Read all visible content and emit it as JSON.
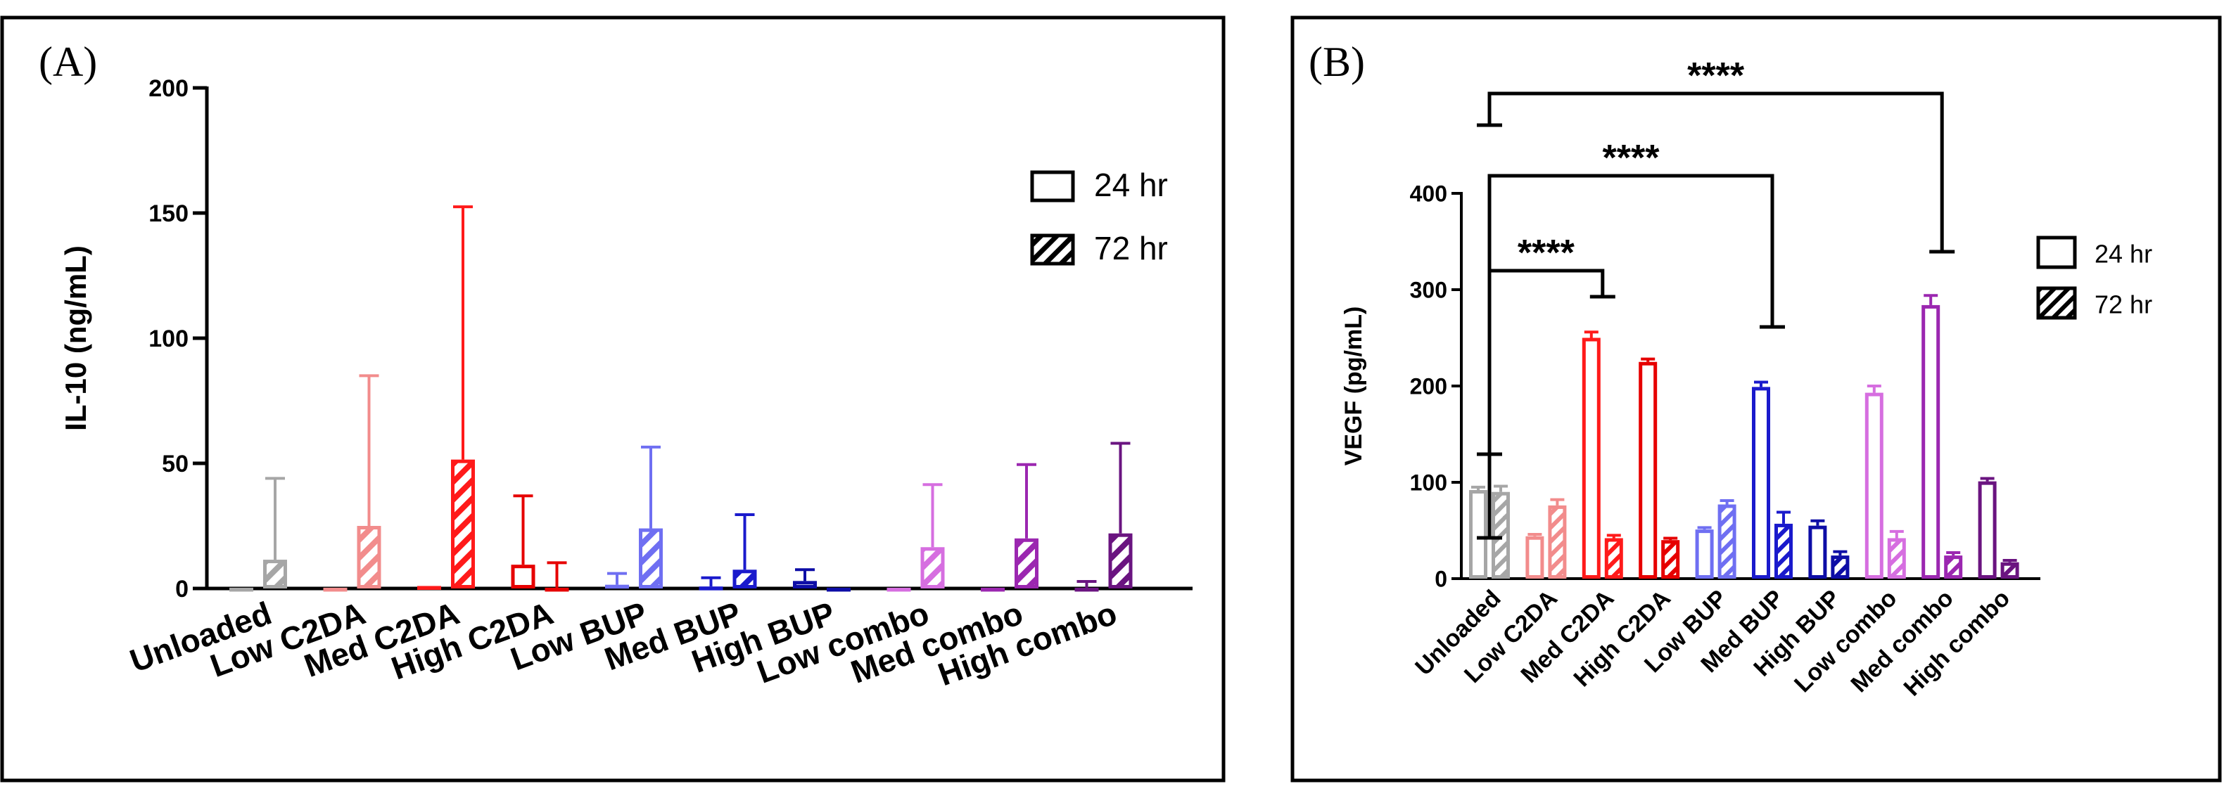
{
  "chart_data": [
    {
      "panel": "(A)",
      "type": "bar",
      "title": "",
      "xlabel": "",
      "ylabel": "IL-10 (ng/mL)",
      "ylim": [
        0,
        200
      ],
      "yticks": [
        "0",
        "50",
        "100",
        "150",
        "200"
      ],
      "categories": [
        "Unloaded",
        "Low C2DA",
        "Med C2DA",
        "High C2DA",
        "Low BUP",
        "Med BUP",
        "High BUP",
        "Low combo",
        "Med combo",
        "High combo"
      ],
      "colors": [
        "#a6a6a6",
        "#f28c8c",
        "#ff1a1a",
        "#e60000",
        "#6f6ff2",
        "#1a1acc",
        "#0d0da6",
        "#d66ee0",
        "#9b27b0",
        "#6a1480"
      ],
      "series": [
        {
          "name": "24 hr",
          "pattern": "open",
          "values": [
            0.3,
            0.3,
            1.0,
            9.5,
            1.5,
            0.8,
            3.0,
            0.3,
            0.3,
            0.3
          ],
          "errors": [
            0,
            0,
            0,
            27.5,
            4.5,
            3.5,
            4.5,
            0,
            0,
            2.5
          ]
        },
        {
          "name": "72 hr",
          "pattern": "hatched",
          "values": [
            11.5,
            25.0,
            51.5,
            0.3,
            24.0,
            7.5,
            0.3,
            16.5,
            20.0,
            22.0
          ],
          "errors": [
            32.5,
            60.0,
            101.0,
            10.0,
            32.5,
            22.0,
            0,
            25.0,
            29.5,
            36.0
          ]
        }
      ],
      "legend": {
        "placement": "top-right",
        "entries": [
          "24 hr",
          "72 hr"
        ]
      }
    },
    {
      "panel": "(B)",
      "type": "bar",
      "title": "",
      "xlabel": "",
      "ylabel": "VEGF (pg/mL)",
      "ylim": [
        0,
        400
      ],
      "yticks": [
        "0",
        "100",
        "200",
        "300",
        "400"
      ],
      "categories": [
        "Unloaded",
        "Low C2DA",
        "Med C2DA",
        "High C2DA",
        "Low BUP",
        "Med BUP",
        "High BUP",
        "Low combo",
        "Med combo",
        "High combo"
      ],
      "colors": [
        "#a6a6a6",
        "#f28c8c",
        "#ff1a1a",
        "#e60000",
        "#6f6ff2",
        "#1a1acc",
        "#0d0da6",
        "#d66ee0",
        "#9b27b0",
        "#6a1480"
      ],
      "series": [
        {
          "name": "24 hr",
          "pattern": "open",
          "values": [
            92,
            44,
            250,
            225,
            51,
            199,
            55,
            193,
            284,
            101
          ],
          "errors": [
            3,
            2,
            6,
            3,
            2,
            5,
            5,
            7,
            10,
            3
          ]
        },
        {
          "name": "72 hr",
          "pattern": "hatched",
          "values": [
            90,
            76,
            42,
            40,
            77,
            57,
            24,
            42,
            24,
            17
          ],
          "errors": [
            6,
            6,
            3,
            2,
            4,
            12,
            4,
            7,
            3,
            2
          ]
        }
      ],
      "legend": {
        "placement": "right",
        "entries": [
          "24 hr",
          "72 hr"
        ]
      },
      "significance": [
        {
          "from": "Unloaded",
          "to": "Med C2DA",
          "label": "****"
        },
        {
          "from": "Unloaded",
          "to": "Med BUP",
          "label": "****"
        },
        {
          "from": "Unloaded",
          "to": "Med combo",
          "label": "****"
        }
      ]
    }
  ]
}
